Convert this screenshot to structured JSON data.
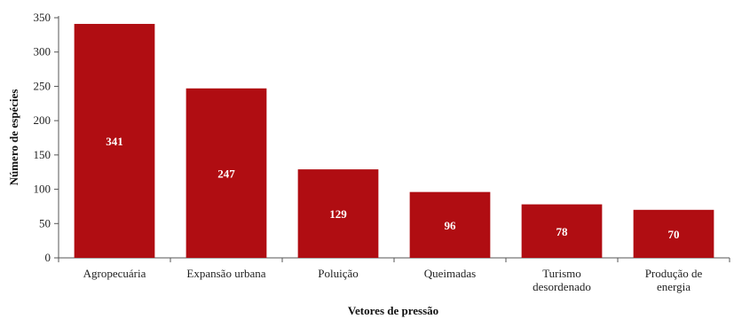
{
  "chart_data": {
    "type": "bar",
    "categories": [
      [
        "Agropecuária"
      ],
      [
        "Expansão urbana"
      ],
      [
        "Poluição"
      ],
      [
        "Queimadas"
      ],
      [
        "Turismo",
        "desordenado"
      ],
      [
        "Produção de",
        "energia"
      ]
    ],
    "values": [
      341,
      247,
      129,
      96,
      78,
      70
    ],
    "data_labels": [
      "341",
      "247",
      "129",
      "96",
      "78",
      "70"
    ],
    "title": "",
    "xlabel": "Vetores de pressão",
    "ylabel": "Número de espécies",
    "ylim": [
      0,
      350
    ],
    "yticks": [
      0,
      50,
      100,
      150,
      200,
      250,
      300,
      350
    ],
    "grid": false,
    "legend": "none",
    "bar_color": "#b00d12"
  }
}
